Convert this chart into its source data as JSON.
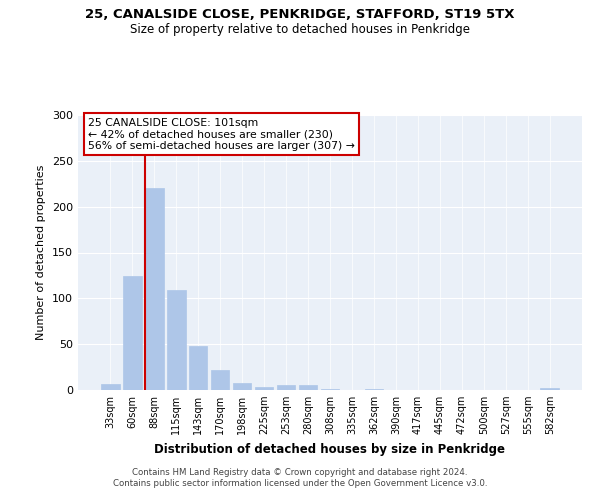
{
  "title1": "25, CANALSIDE CLOSE, PENKRIDGE, STAFFORD, ST19 5TX",
  "title2": "Size of property relative to detached houses in Penkridge",
  "xlabel": "Distribution of detached houses by size in Penkridge",
  "ylabel": "Number of detached properties",
  "categories": [
    "33sqm",
    "60sqm",
    "88sqm",
    "115sqm",
    "143sqm",
    "170sqm",
    "198sqm",
    "225sqm",
    "253sqm",
    "280sqm",
    "308sqm",
    "335sqm",
    "362sqm",
    "390sqm",
    "417sqm",
    "445sqm",
    "472sqm",
    "500sqm",
    "527sqm",
    "555sqm",
    "582sqm"
  ],
  "values": [
    7,
    124,
    220,
    109,
    48,
    22,
    8,
    3,
    5,
    6,
    1,
    0,
    1,
    0,
    0,
    0,
    0,
    0,
    0,
    0,
    2
  ],
  "bar_color": "#aec6e8",
  "bar_edgecolor": "#aec6e8",
  "vline_index": 2,
  "vline_color": "#cc0000",
  "annotation_text": "25 CANALSIDE CLOSE: 101sqm\n← 42% of detached houses are smaller (230)\n56% of semi-detached houses are larger (307) →",
  "annotation_box_facecolor": "#ffffff",
  "annotation_box_edgecolor": "#cc0000",
  "ylim": [
    0,
    300
  ],
  "yticks": [
    0,
    50,
    100,
    150,
    200,
    250,
    300
  ],
  "background_color": "#eaf0f8",
  "footer_line1": "Contains HM Land Registry data © Crown copyright and database right 2024.",
  "footer_line2": "Contains public sector information licensed under the Open Government Licence v3.0."
}
